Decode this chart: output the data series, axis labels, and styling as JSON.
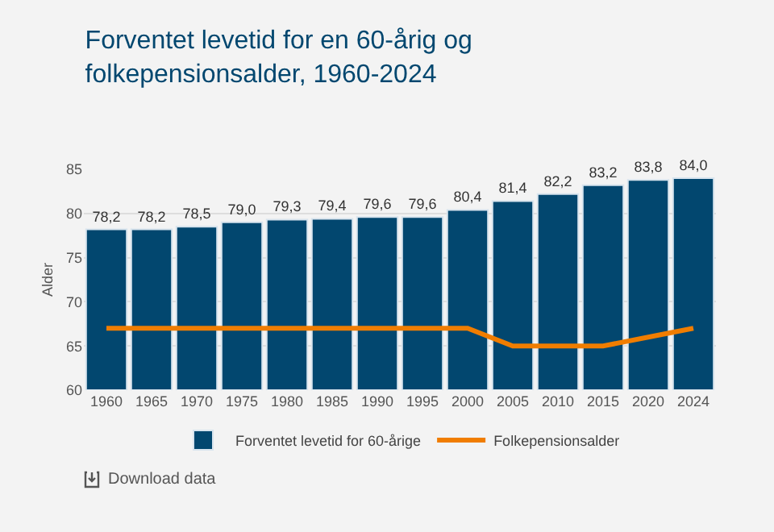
{
  "chart_data": {
    "type": "bar",
    "title": "Forventet levetid for en 60-årig og folkepensionsalder, 1960-2024",
    "ylabel": "Alder",
    "categories": [
      "1960",
      "1965",
      "1970",
      "1975",
      "1980",
      "1985",
      "1990",
      "1995",
      "2000",
      "2005",
      "2010",
      "2015",
      "2020",
      "2024"
    ],
    "series": [
      {
        "name": "Forventet levetid for 60-årige",
        "color": "#02476f",
        "values": [
          78.2,
          78.2,
          78.5,
          79.0,
          79.3,
          79.4,
          79.6,
          79.6,
          80.4,
          81.4,
          82.2,
          83.2,
          83.8,
          84.0
        ],
        "value_labels": [
          "78,2",
          "78,2",
          "78,5",
          "79,0",
          "79,3",
          "79,4",
          "79,6",
          "79,6",
          "80,4",
          "81,4",
          "82,2",
          "83,2",
          "83,8",
          "84,0"
        ]
      },
      {
        "name": "Folkepensionsalder",
        "type": "line",
        "color": "#f07d00",
        "values": [
          67,
          67,
          67,
          67,
          67,
          67,
          67,
          67,
          67,
          65,
          65,
          65,
          66,
          67
        ]
      }
    ],
    "ylim": [
      60,
      85
    ],
    "yticks": [
      60,
      65,
      70,
      75,
      80,
      85
    ],
    "grid": "y",
    "legend": "bottom",
    "marker": "none",
    "annotations": [
      "Download data"
    ]
  }
}
